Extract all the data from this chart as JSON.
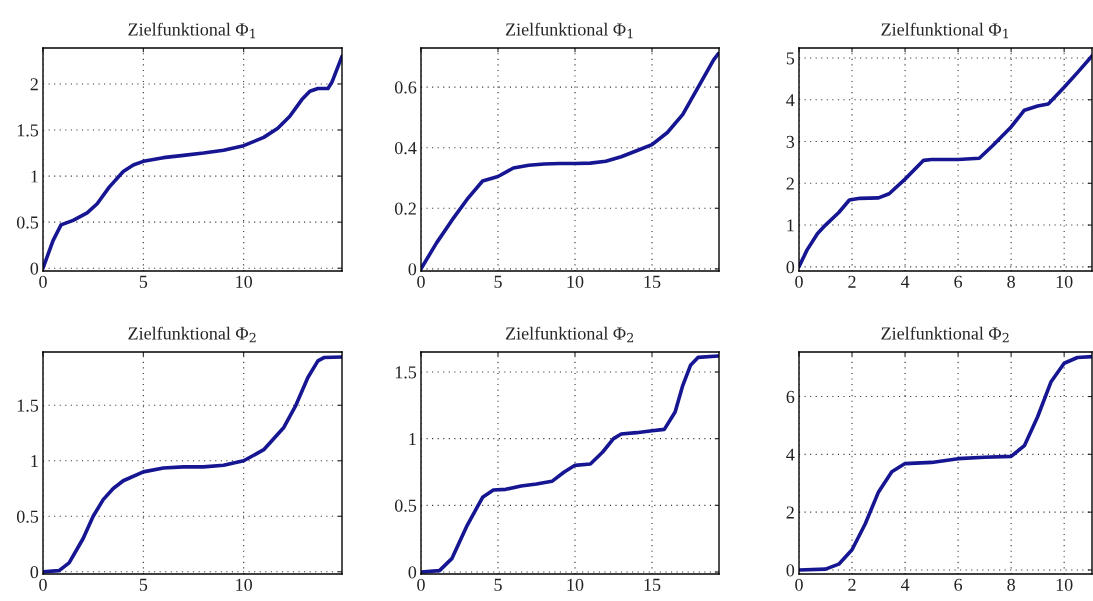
{
  "chart_data": [
    {
      "type": "line",
      "title": "Zielfunktional Φ$_{1}$",
      "xlim": [
        0,
        14.9
      ],
      "ylim": [
        -0.03,
        2.39
      ],
      "xticks": [
        0,
        5,
        10
      ],
      "yticks": [
        0,
        0.5,
        1,
        1.5,
        2
      ],
      "grid": true,
      "series": [
        {
          "color": "#161692",
          "x": [
            0,
            0.5,
            0.9,
            1.5,
            2.2,
            2.7,
            3.3,
            4,
            4.5,
            5,
            6,
            7,
            8,
            9,
            10,
            11,
            11.7,
            12.3,
            12.9,
            13.3,
            13.7,
            14.2,
            14.4,
            14.9
          ],
          "values": [
            0,
            0.3,
            0.47,
            0.52,
            0.6,
            0.7,
            0.88,
            1.05,
            1.12,
            1.16,
            1.2,
            1.225,
            1.25,
            1.28,
            1.33,
            1.42,
            1.52,
            1.65,
            1.83,
            1.92,
            1.95,
            1.95,
            2.02,
            2.3
          ]
        }
      ]
    },
    {
      "type": "line",
      "title": "Zielfunktional Φ$_{1}$",
      "xlim": [
        0,
        19.35
      ],
      "ylim": [
        -0.007,
        0.729
      ],
      "xticks": [
        0,
        5,
        10,
        15
      ],
      "yticks": [
        0,
        0.2,
        0.4,
        0.6
      ],
      "grid": true,
      "series": [
        {
          "color": "#161692",
          "x": [
            0,
            1,
            2,
            3,
            4,
            5,
            6,
            7,
            8,
            9,
            10,
            11,
            12,
            13,
            14,
            15,
            16,
            17,
            18,
            19,
            19.3
          ],
          "values": [
            0,
            0.085,
            0.16,
            0.23,
            0.29,
            0.305,
            0.333,
            0.342,
            0.346,
            0.348,
            0.348,
            0.349,
            0.355,
            0.37,
            0.39,
            0.41,
            0.45,
            0.51,
            0.6,
            0.69,
            0.71
          ]
        }
      ]
    },
    {
      "type": "line",
      "title": "Zielfunktional Φ$_{1}$",
      "xlim": [
        0,
        11.05
      ],
      "ylim": [
        -0.1,
        5.24
      ],
      "xticks": [
        0,
        2,
        4,
        6,
        8,
        10
      ],
      "yticks": [
        0,
        1,
        2,
        3,
        4,
        5
      ],
      "grid": true,
      "series": [
        {
          "color": "#161692",
          "x": [
            0,
            0.3,
            0.7,
            1,
            1.5,
            1.9,
            2.3,
            3,
            3.4,
            4,
            4.7,
            5,
            6,
            6.8,
            7.3,
            8,
            8.5,
            9,
            9.4,
            10,
            10.5,
            11.05
          ],
          "values": [
            0,
            0.4,
            0.8,
            1.0,
            1.3,
            1.6,
            1.64,
            1.65,
            1.75,
            2.1,
            2.55,
            2.57,
            2.57,
            2.6,
            2.9,
            3.35,
            3.75,
            3.85,
            3.9,
            4.3,
            4.65,
            5.05
          ]
        }
      ]
    },
    {
      "type": "line",
      "title": "Zielfunktional Φ$_{2}$",
      "xlim": [
        0,
        14.9
      ],
      "ylim": [
        -0.02,
        1.98
      ],
      "xticks": [
        0,
        5,
        10
      ],
      "yticks": [
        0,
        0.5,
        1,
        1.5
      ],
      "grid": true,
      "series": [
        {
          "color": "#161692",
          "x": [
            0,
            0.8,
            1.3,
            2,
            2.5,
            3,
            3.5,
            4,
            5,
            6,
            7,
            8,
            9,
            10,
            11,
            12,
            12.6,
            13.2,
            13.7,
            14,
            14.9
          ],
          "values": [
            0,
            0.01,
            0.08,
            0.3,
            0.5,
            0.65,
            0.75,
            0.82,
            0.9,
            0.935,
            0.945,
            0.945,
            0.96,
            1.0,
            1.1,
            1.3,
            1.5,
            1.75,
            1.9,
            1.93,
            1.935
          ]
        }
      ]
    },
    {
      "type": "line",
      "title": "Zielfunktional Φ$_{2}$",
      "xlim": [
        0,
        19.35
      ],
      "ylim": [
        -0.015,
        1.65
      ],
      "xticks": [
        0,
        5,
        10,
        15
      ],
      "yticks": [
        0,
        0.5,
        1,
        1.5
      ],
      "grid": true,
      "series": [
        {
          "color": "#161692",
          "x": [
            0,
            1.2,
            2,
            3,
            4,
            4.7,
            5.5,
            6.5,
            7.5,
            8.5,
            9.3,
            10,
            11,
            11.8,
            12.5,
            13,
            14,
            15,
            15.8,
            16.5,
            17,
            17.5,
            18,
            19.3
          ],
          "values": [
            0,
            0.01,
            0.1,
            0.35,
            0.56,
            0.615,
            0.62,
            0.645,
            0.66,
            0.68,
            0.75,
            0.8,
            0.81,
            0.9,
            1.0,
            1.035,
            1.045,
            1.06,
            1.07,
            1.2,
            1.4,
            1.55,
            1.61,
            1.62
          ]
        }
      ]
    },
    {
      "type": "line",
      "title": "Zielfunktional Φ$_{2}$",
      "xlim": [
        0,
        11.05
      ],
      "ylim": [
        -0.14,
        7.54
      ],
      "xticks": [
        0,
        2,
        4,
        6,
        8,
        10
      ],
      "yticks": [
        0,
        2,
        4,
        6
      ],
      "grid": true,
      "series": [
        {
          "color": "#161692",
          "x": [
            0,
            1,
            1.5,
            2,
            2.5,
            3,
            3.5,
            4,
            5,
            6,
            7,
            8,
            8.5,
            9,
            9.5,
            10,
            10.5,
            11.05
          ],
          "values": [
            0,
            0.03,
            0.2,
            0.7,
            1.6,
            2.7,
            3.4,
            3.68,
            3.72,
            3.85,
            3.9,
            3.93,
            4.3,
            5.3,
            6.5,
            7.15,
            7.35,
            7.38
          ]
        }
      ]
    }
  ]
}
